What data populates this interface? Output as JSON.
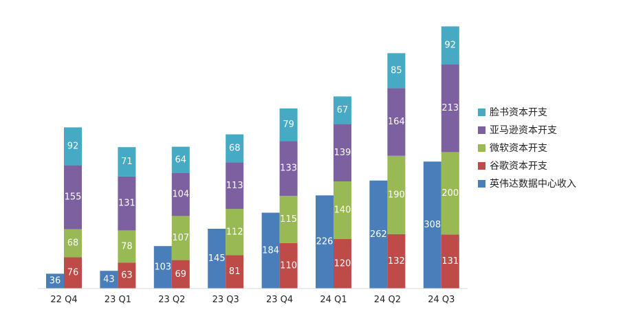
{
  "chart_data": {
    "type": "bar",
    "mode": "grouped-stacked",
    "categories": [
      "22 Q4",
      "23 Q1",
      "23 Q2",
      "23 Q3",
      "23 Q4",
      "24 Q1",
      "24 Q2",
      "24 Q3"
    ],
    "nvidia": {
      "name": "英伟达数据中心收入",
      "color": "#4a7ebb",
      "values": [
        36,
        43,
        103,
        145,
        184,
        226,
        262,
        308
      ]
    },
    "stack": [
      {
        "name": "谷歌资本开支",
        "color": "#be4b48",
        "values": [
          76,
          63,
          69,
          81,
          110,
          120,
          132,
          131
        ]
      },
      {
        "name": "微软资本开支",
        "color": "#98b954",
        "values": [
          68,
          78,
          107,
          112,
          115,
          140,
          190,
          200
        ]
      },
      {
        "name": "亚马逊资本开支",
        "color": "#7d60a0",
        "values": [
          155,
          131,
          104,
          113,
          133,
          139,
          164,
          213
        ]
      },
      {
        "name": "脸书资本开支",
        "color": "#46aac5",
        "values": [
          92,
          71,
          64,
          68,
          79,
          67,
          85,
          92
        ]
      }
    ],
    "legend_order": [
      "脸书资本开支",
      "亚马逊资本开支",
      "微软资本开支",
      "谷歌资本开支",
      "英伟达数据中心收入"
    ],
    "legend_position": "right",
    "grid": false,
    "ylim": [
      0,
      640
    ]
  }
}
